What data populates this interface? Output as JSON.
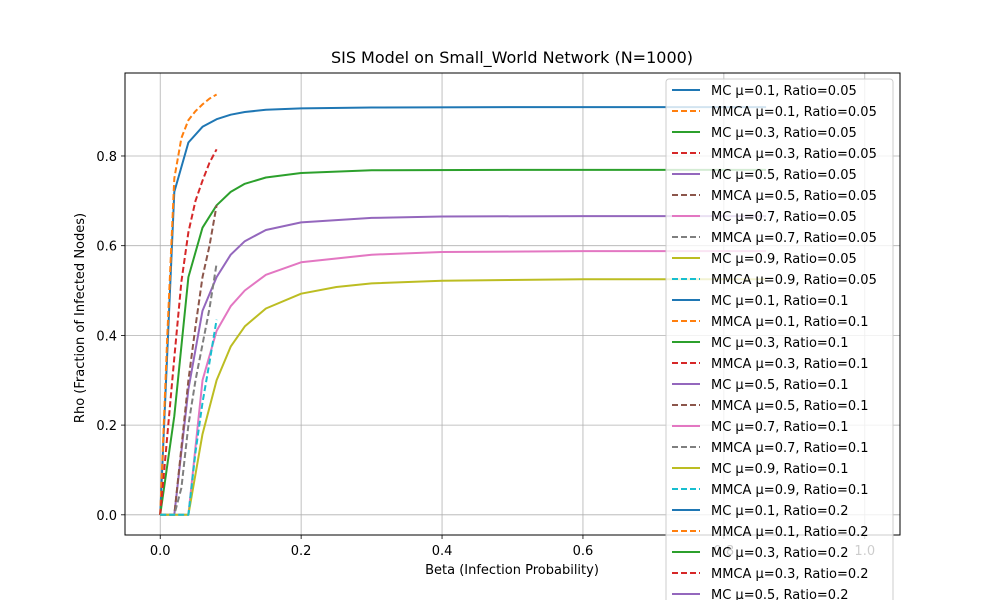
{
  "chart_data": {
    "type": "line",
    "title": "SIS Model on Small_World Network (N=1000)",
    "xlabel": "Beta (Infection Probability)",
    "ylabel": "Rho (Fraction of Infected Nodes)",
    "xlim": [
      -0.05,
      1.05
    ],
    "ylim": [
      -0.045,
      0.985
    ],
    "xticks": [
      0.0,
      0.2,
      0.4,
      0.6,
      0.8,
      1.0
    ],
    "xtick_labels": [
      "0.0",
      "0.2",
      "0.4",
      "0.6",
      "0.8",
      "1.0"
    ],
    "yticks": [
      0.0,
      0.2,
      0.4,
      0.6,
      0.8
    ],
    "ytick_labels": [
      "0.0",
      "0.2",
      "0.4",
      "0.6",
      "0.8"
    ],
    "grid": true,
    "legend_position": "top-right",
    "series": [
      {
        "name": "MC μ=0.1, Ratio=0.05",
        "color": "#1f77b4",
        "style": "solid",
        "mu": 0.1,
        "ratio": 0.05
      },
      {
        "name": "MMCA μ=0.1, Ratio=0.05",
        "color": "#ff7f0e",
        "style": "dashed",
        "mu": 0.1,
        "ratio": 0.05
      },
      {
        "name": "MC μ=0.3, Ratio=0.05",
        "color": "#2ca02c",
        "style": "solid",
        "mu": 0.3,
        "ratio": 0.05
      },
      {
        "name": "MMCA μ=0.3, Ratio=0.05",
        "color": "#d62728",
        "style": "dashed",
        "mu": 0.3,
        "ratio": 0.05
      },
      {
        "name": "MC μ=0.5, Ratio=0.05",
        "color": "#9467bd",
        "style": "solid",
        "mu": 0.5,
        "ratio": 0.05
      },
      {
        "name": "MMCA μ=0.5, Ratio=0.05",
        "color": "#8c564b",
        "style": "dashed",
        "mu": 0.5,
        "ratio": 0.05
      },
      {
        "name": "MC μ=0.7, Ratio=0.05",
        "color": "#e377c2",
        "style": "solid",
        "mu": 0.7,
        "ratio": 0.05
      },
      {
        "name": "MMCA μ=0.7, Ratio=0.05",
        "color": "#7f7f7f",
        "style": "dashed",
        "mu": 0.7,
        "ratio": 0.05
      },
      {
        "name": "MC μ=0.9, Ratio=0.05",
        "color": "#bcbd22",
        "style": "solid",
        "mu": 0.9,
        "ratio": 0.05
      },
      {
        "name": "MMCA μ=0.9, Ratio=0.05",
        "color": "#17becf",
        "style": "dashed",
        "mu": 0.9,
        "ratio": 0.05
      },
      {
        "name": "MC μ=0.1, Ratio=0.1",
        "color": "#1f77b4",
        "style": "solid",
        "mu": 0.1,
        "ratio": 0.1
      },
      {
        "name": "MMCA μ=0.1, Ratio=0.1",
        "color": "#ff7f0e",
        "style": "dashed",
        "mu": 0.1,
        "ratio": 0.1
      },
      {
        "name": "MC μ=0.3, Ratio=0.1",
        "color": "#2ca02c",
        "style": "solid",
        "mu": 0.3,
        "ratio": 0.1
      },
      {
        "name": "MMCA μ=0.3, Ratio=0.1",
        "color": "#d62728",
        "style": "dashed",
        "mu": 0.3,
        "ratio": 0.1
      },
      {
        "name": "MC μ=0.5, Ratio=0.1",
        "color": "#9467bd",
        "style": "solid",
        "mu": 0.5,
        "ratio": 0.1
      },
      {
        "name": "MMCA μ=0.5, Ratio=0.1",
        "color": "#8c564b",
        "style": "dashed",
        "mu": 0.5,
        "ratio": 0.1
      },
      {
        "name": "MC μ=0.7, Ratio=0.1",
        "color": "#e377c2",
        "style": "solid",
        "mu": 0.7,
        "ratio": 0.1
      },
      {
        "name": "MMCA μ=0.7, Ratio=0.1",
        "color": "#7f7f7f",
        "style": "dashed",
        "mu": 0.7,
        "ratio": 0.1
      },
      {
        "name": "MC μ=0.9, Ratio=0.1",
        "color": "#bcbd22",
        "style": "solid",
        "mu": 0.9,
        "ratio": 0.1
      },
      {
        "name": "MMCA μ=0.9, Ratio=0.1",
        "color": "#17becf",
        "style": "dashed",
        "mu": 0.9,
        "ratio": 0.1
      },
      {
        "name": "MC μ=0.1, Ratio=0.2",
        "color": "#1f77b4",
        "style": "solid",
        "mu": 0.1,
        "ratio": 0.2
      },
      {
        "name": "MMCA μ=0.1, Ratio=0.2",
        "color": "#ff7f0e",
        "style": "dashed",
        "mu": 0.1,
        "ratio": 0.2
      },
      {
        "name": "MC μ=0.3, Ratio=0.2",
        "color": "#2ca02c",
        "style": "solid",
        "mu": 0.3,
        "ratio": 0.2
      },
      {
        "name": "MMCA μ=0.3, Ratio=0.2",
        "color": "#d62728",
        "style": "dashed",
        "mu": 0.3,
        "ratio": 0.2
      },
      {
        "name": "MC μ=0.5, Ratio=0.2",
        "color": "#9467bd",
        "style": "solid",
        "mu": 0.5,
        "ratio": 0.2
      }
    ],
    "curves": [
      {
        "label": "MC μ=0.1",
        "color": "#1f77b4",
        "style": "solid",
        "points": [
          [
            0.0,
            0.0
          ],
          [
            0.02,
            0.72
          ],
          [
            0.04,
            0.83
          ],
          [
            0.06,
            0.865
          ],
          [
            0.08,
            0.882
          ],
          [
            0.1,
            0.892
          ],
          [
            0.12,
            0.898
          ],
          [
            0.15,
            0.903
          ],
          [
            0.2,
            0.906
          ],
          [
            0.3,
            0.908
          ],
          [
            0.5,
            0.909
          ],
          [
            0.7,
            0.909
          ],
          [
            0.86,
            0.909
          ]
        ]
      },
      {
        "label": "MMCA μ=0.1",
        "color": "#ff7f0e",
        "style": "dashed",
        "points": [
          [
            0.0,
            0.0
          ],
          [
            0.01,
            0.4
          ],
          [
            0.02,
            0.75
          ],
          [
            0.03,
            0.84
          ],
          [
            0.04,
            0.88
          ],
          [
            0.05,
            0.9
          ],
          [
            0.06,
            0.915
          ],
          [
            0.07,
            0.928
          ],
          [
            0.08,
            0.937
          ]
        ]
      },
      {
        "label": "MC μ=0.3",
        "color": "#2ca02c",
        "style": "solid",
        "points": [
          [
            0.0,
            0.0
          ],
          [
            0.02,
            0.22
          ],
          [
            0.04,
            0.53
          ],
          [
            0.06,
            0.64
          ],
          [
            0.08,
            0.69
          ],
          [
            0.1,
            0.72
          ],
          [
            0.12,
            0.738
          ],
          [
            0.15,
            0.752
          ],
          [
            0.2,
            0.762
          ],
          [
            0.3,
            0.768
          ],
          [
            0.5,
            0.769
          ],
          [
            0.7,
            0.769
          ],
          [
            0.86,
            0.769
          ]
        ]
      },
      {
        "label": "MMCA μ=0.3",
        "color": "#d62728",
        "style": "dashed",
        "points": [
          [
            0.0,
            0.0
          ],
          [
            0.02,
            0.35
          ],
          [
            0.03,
            0.52
          ],
          [
            0.04,
            0.63
          ],
          [
            0.05,
            0.7
          ],
          [
            0.06,
            0.745
          ],
          [
            0.07,
            0.785
          ],
          [
            0.08,
            0.815
          ]
        ]
      },
      {
        "label": "MC μ=0.5",
        "color": "#9467bd",
        "style": "solid",
        "points": [
          [
            0.0,
            0.0
          ],
          [
            0.02,
            0.0
          ],
          [
            0.04,
            0.28
          ],
          [
            0.06,
            0.455
          ],
          [
            0.08,
            0.53
          ],
          [
            0.1,
            0.58
          ],
          [
            0.12,
            0.61
          ],
          [
            0.15,
            0.635
          ],
          [
            0.2,
            0.652
          ],
          [
            0.3,
            0.662
          ],
          [
            0.4,
            0.665
          ],
          [
            0.6,
            0.666
          ],
          [
            0.86,
            0.666
          ]
        ]
      },
      {
        "label": "MMCA μ=0.5",
        "color": "#8c564b",
        "style": "dashed",
        "points": [
          [
            0.0,
            0.0
          ],
          [
            0.02,
            0.0
          ],
          [
            0.03,
            0.15
          ],
          [
            0.04,
            0.3
          ],
          [
            0.05,
            0.42
          ],
          [
            0.06,
            0.53
          ],
          [
            0.07,
            0.6
          ],
          [
            0.08,
            0.69
          ]
        ]
      },
      {
        "label": "MC μ=0.7",
        "color": "#e377c2",
        "style": "solid",
        "points": [
          [
            0.0,
            0.0
          ],
          [
            0.02,
            0.0
          ],
          [
            0.04,
            0.0
          ],
          [
            0.06,
            0.3
          ],
          [
            0.08,
            0.41
          ],
          [
            0.1,
            0.465
          ],
          [
            0.12,
            0.5
          ],
          [
            0.15,
            0.535
          ],
          [
            0.2,
            0.563
          ],
          [
            0.3,
            0.58
          ],
          [
            0.4,
            0.586
          ],
          [
            0.6,
            0.588
          ],
          [
            0.86,
            0.588
          ]
        ]
      },
      {
        "label": "MMCA μ=0.7",
        "color": "#7f7f7f",
        "style": "dashed",
        "points": [
          [
            0.0,
            0.0
          ],
          [
            0.02,
            0.0
          ],
          [
            0.03,
            0.06
          ],
          [
            0.04,
            0.2
          ],
          [
            0.05,
            0.3
          ],
          [
            0.06,
            0.38
          ],
          [
            0.07,
            0.46
          ],
          [
            0.08,
            0.56
          ]
        ]
      },
      {
        "label": "MC μ=0.9",
        "color": "#bcbd22",
        "style": "solid",
        "points": [
          [
            0.0,
            0.0
          ],
          [
            0.02,
            0.0
          ],
          [
            0.04,
            0.0
          ],
          [
            0.06,
            0.18
          ],
          [
            0.08,
            0.3
          ],
          [
            0.1,
            0.375
          ],
          [
            0.12,
            0.42
          ],
          [
            0.15,
            0.46
          ],
          [
            0.2,
            0.493
          ],
          [
            0.25,
            0.508
          ],
          [
            0.3,
            0.516
          ],
          [
            0.4,
            0.522
          ],
          [
            0.6,
            0.525
          ],
          [
            0.86,
            0.525
          ]
        ]
      },
      {
        "label": "MMCA μ=0.9",
        "color": "#17becf",
        "style": "dashed",
        "points": [
          [
            0.0,
            0.0
          ],
          [
            0.02,
            0.0
          ],
          [
            0.04,
            0.0
          ],
          [
            0.05,
            0.14
          ],
          [
            0.06,
            0.25
          ],
          [
            0.07,
            0.34
          ],
          [
            0.08,
            0.435
          ]
        ]
      }
    ]
  }
}
